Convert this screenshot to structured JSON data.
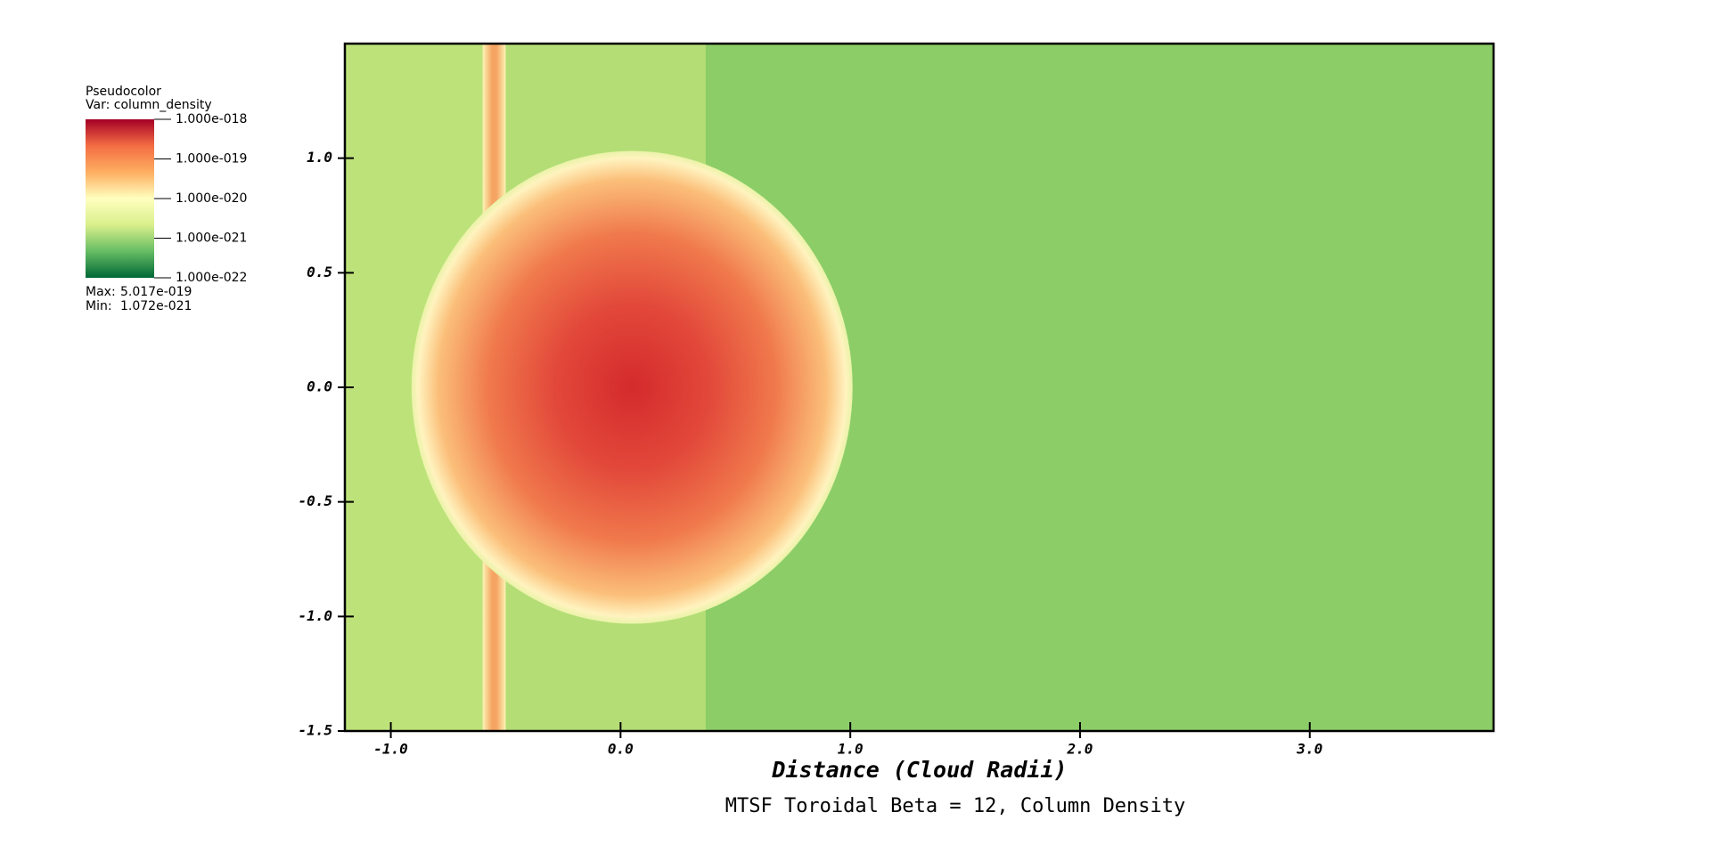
{
  "chart_data": {
    "type": "pseudocolor",
    "title": "MTSF Toroidal Beta = 12, Column Density",
    "xlabel": "Distance (Cloud Radii)",
    "xlim": [
      -1.2,
      3.8
    ],
    "ylim": [
      -1.5,
      1.5
    ],
    "xticks": [
      {
        "value": -1,
        "label": "-1.0"
      },
      {
        "value": 0,
        "label": "0.0"
      },
      {
        "value": 1,
        "label": "1.0"
      },
      {
        "value": 2,
        "label": "2.0"
      },
      {
        "value": 3,
        "label": "3.0"
      }
    ],
    "yticks": [
      {
        "value": -1.5,
        "label": "-1.5"
      },
      {
        "value": -1,
        "label": "-1.0"
      },
      {
        "value": -0.5,
        "label": "-0.5"
      },
      {
        "value": 0,
        "label": "0.0"
      },
      {
        "value": 0.5,
        "label": "0.5"
      },
      {
        "value": 1,
        "label": "1.0"
      }
    ],
    "legend": {
      "plot": "Pseudocolor",
      "var": "Var: column_density",
      "log": true,
      "range": [
        1e-22,
        1e-18
      ],
      "colors": [
        "#006837",
        "#66bd63",
        "#d9ef8b",
        "#ffffbf",
        "#fdae61",
        "#f46d43",
        "#a50026"
      ],
      "ticks": [
        {
          "value": 1e-18,
          "label": "1.000e-018"
        },
        {
          "value": 1e-19,
          "label": "1.000e-019"
        },
        {
          "value": 1e-20,
          "label": "1.000e-020"
        },
        {
          "value": 1e-21,
          "label": "1.000e-021"
        },
        {
          "value": 1e-22,
          "label": "1.000e-022"
        }
      ],
      "max_label": "Max:",
      "max": {
        "value": 5.017e-19,
        "label": "5.017e-019"
      },
      "min_label": "Min:",
      "min": {
        "value": 1.072e-21,
        "label": "1.072e-021"
      }
    }
  }
}
